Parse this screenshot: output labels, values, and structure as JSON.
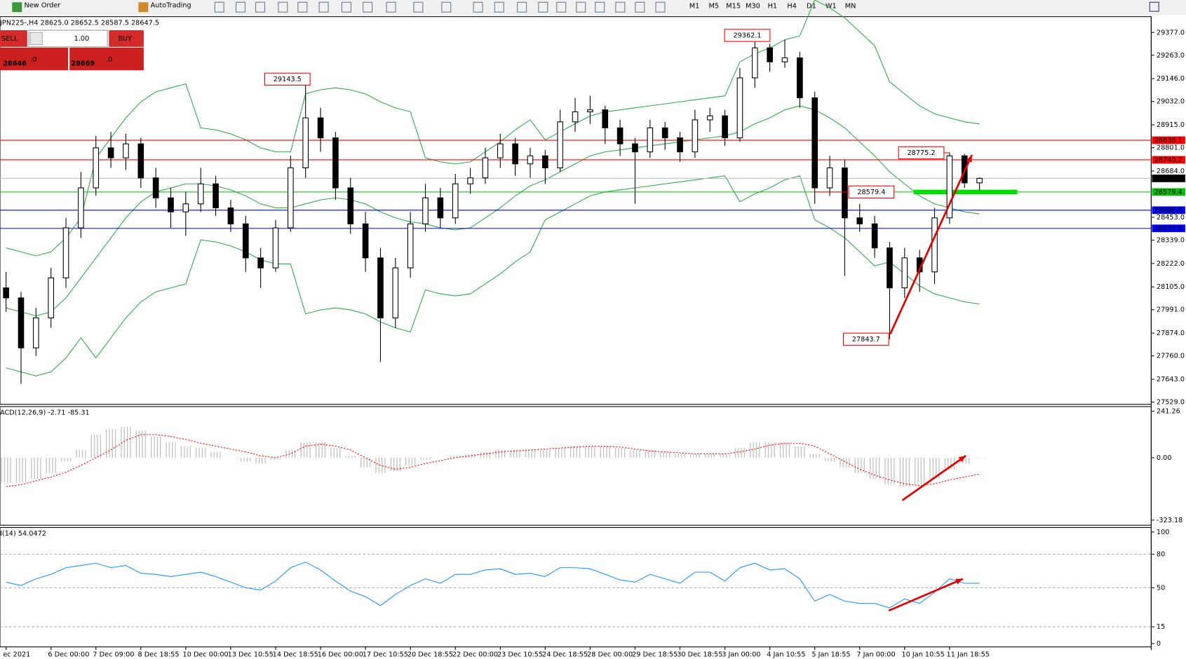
{
  "toolbar": {
    "buttons": [
      "New Order",
      "AutoTrading"
    ],
    "timeframes": [
      "M1",
      "M5",
      "M15",
      "M30",
      "H1",
      "H4",
      "D1",
      "W1",
      "MN"
    ]
  },
  "trade_panel": {
    "sell": "SELL",
    "buy": "BUY",
    "lots": "1.00",
    "sell_price": "28646",
    "sell_digits": ".0",
    "buy_price": "28669",
    "buy_digits": ".0"
  },
  "chart_data": [
    {
      "type": "candlestick",
      "title": "JPN225-,H4 28625.0 28652.5 28587.5 28647.5",
      "up_color": "#ffffff",
      "down_color": "#000000",
      "categories": [
        "ec 2021",
        null,
        null,
        "6 Dec 00:00",
        null,
        null,
        "7 Dec 09:00",
        null,
        null,
        "8 Dec 18:55",
        null,
        null,
        "10 Dec 00:00",
        null,
        null,
        "13 Dec 10:55",
        null,
        null,
        "14 Dec 18:55",
        null,
        null,
        "16 Dec 00:00",
        null,
        null,
        "17 Dec 10:55",
        null,
        null,
        "20 Dec 18:55",
        null,
        null,
        "22 Dec 00:00",
        null,
        null,
        "23 Dec 10:55",
        null,
        null,
        "24 Dec 18:55",
        null,
        null,
        "28 Dec 00:00",
        null,
        null,
        "29 Dec 18:55",
        null,
        null,
        "30 Dec 18:55",
        null,
        null,
        "3 Jan 00:00",
        null,
        null,
        "4 Jan 10:55",
        null,
        null,
        "5 Jan 18:55",
        null,
        null,
        "7 Jan 00:00",
        null,
        null,
        "10 Jan 10:55",
        null,
        null,
        "11 Jan 18:55",
        null,
        null
      ],
      "ohlc": [
        [
          28100,
          28180,
          27980,
          28050
        ],
        [
          28050,
          28080,
          27620,
          27800
        ],
        [
          27800,
          28000,
          27760,
          27950
        ],
        [
          27950,
          28200,
          27900,
          28150
        ],
        [
          28150,
          28450,
          28100,
          28400
        ],
        [
          28400,
          28680,
          28350,
          28600
        ],
        [
          28600,
          28860,
          28560,
          28800
        ],
        [
          28800,
          28880,
          28700,
          28750
        ],
        [
          28750,
          28870,
          28690,
          28820
        ],
        [
          28820,
          28850,
          28600,
          28650
        ],
        [
          28650,
          28700,
          28500,
          28550
        ],
        [
          28550,
          28600,
          28400,
          28480
        ],
        [
          28480,
          28580,
          28360,
          28520
        ],
        [
          28520,
          28700,
          28480,
          28620
        ],
        [
          28620,
          28660,
          28460,
          28500
        ],
        [
          28500,
          28540,
          28380,
          28420
        ],
        [
          28420,
          28460,
          28180,
          28250
        ],
        [
          28250,
          28300,
          28100,
          28200
        ],
        [
          28200,
          28440,
          28180,
          28400
        ],
        [
          28400,
          28760,
          28380,
          28700
        ],
        [
          28700,
          29143.5,
          28650,
          28950
        ],
        [
          28950,
          29000,
          28780,
          28850
        ],
        [
          28850,
          28880,
          28540,
          28600
        ],
        [
          28600,
          28650,
          28370,
          28420
        ],
        [
          28420,
          28480,
          28180,
          28250
        ],
        [
          28250,
          28300,
          27730,
          27950
        ],
        [
          27950,
          28250,
          27900,
          28200
        ],
        [
          28200,
          28480,
          28150,
          28420
        ],
        [
          28420,
          28620,
          28380,
          28550
        ],
        [
          28550,
          28600,
          28400,
          28450
        ],
        [
          28450,
          28670,
          28420,
          28620
        ],
        [
          28620,
          28700,
          28570,
          28650
        ],
        [
          28650,
          28800,
          28620,
          28750
        ],
        [
          28750,
          28870,
          28700,
          28820
        ],
        [
          28820,
          28850,
          28660,
          28720
        ],
        [
          28720,
          28800,
          28650,
          28760
        ],
        [
          28760,
          28790,
          28620,
          28700
        ],
        [
          28700,
          28990,
          28680,
          28930
        ],
        [
          28930,
          29050,
          28880,
          28980
        ],
        [
          28980,
          29060,
          28920,
          28990
        ],
        [
          28990,
          29010,
          28820,
          28900
        ],
        [
          28900,
          28940,
          28760,
          28820
        ],
        [
          28820,
          28850,
          28520,
          28780
        ],
        [
          28780,
          28940,
          28750,
          28900
        ],
        [
          28900,
          28930,
          28790,
          28850
        ],
        [
          28850,
          28880,
          28730,
          28780
        ],
        [
          28780,
          28990,
          28750,
          28940
        ],
        [
          28940,
          29000,
          28880,
          28960
        ],
        [
          28960,
          28990,
          28810,
          28850
        ],
        [
          28850,
          29200,
          28830,
          29150
        ],
        [
          29150,
          29362.1,
          29100,
          29300
        ],
        [
          29300,
          29320,
          29180,
          29230
        ],
        [
          29230,
          29340,
          29200,
          29250
        ],
        [
          29250,
          29280,
          29000,
          29050
        ],
        [
          29050,
          29080,
          28520,
          28600
        ],
        [
          28600,
          28760,
          28560,
          28700
        ],
        [
          28700,
          28740,
          28160,
          28450
        ],
        [
          28450,
          28520,
          28380,
          28420
        ],
        [
          28420,
          28460,
          28250,
          28300
        ],
        [
          28300,
          28330,
          27843.7,
          28100
        ],
        [
          28100,
          28300,
          28050,
          28250
        ],
        [
          28250,
          28290,
          28080,
          28180
        ],
        [
          28180,
          28500,
          28120,
          28450
        ],
        [
          28450,
          28775.2,
          28420,
          28760
        ],
        [
          28760,
          28770,
          28600,
          28625
        ],
        [
          28625,
          28652.5,
          28587.5,
          28647.5
        ]
      ],
      "bands": {
        "color": "#2eaa4a",
        "upper": [
          28300,
          28280,
          28260,
          28280,
          28350,
          28450,
          28750,
          28850,
          28950,
          29030,
          29080,
          29100,
          29120,
          28900,
          28890,
          28870,
          28840,
          28800,
          28780,
          28780,
          29070,
          29090,
          29100,
          29090,
          29070,
          29030,
          29000,
          28980,
          28750,
          28730,
          28720,
          28730,
          28780,
          28830,
          28890,
          28940,
          28840,
          28880,
          28920,
          28960,
          28980,
          28990,
          29000,
          29010,
          29020,
          29030,
          29040,
          29050,
          29060,
          29230,
          29270,
          29300,
          29340,
          29360,
          29540,
          29500,
          29450,
          29380,
          29310,
          29130,
          29070,
          29010,
          28970,
          28950,
          28930,
          28920
        ],
        "middle": [
          28000,
          27980,
          27960,
          27980,
          28050,
          28150,
          28250,
          28350,
          28450,
          28530,
          28580,
          28600,
          28620,
          28620,
          28610,
          28590,
          28560,
          28520,
          28500,
          28500,
          28520,
          28540,
          28550,
          28540,
          28520,
          28480,
          28450,
          28430,
          28420,
          28400,
          28390,
          28400,
          28450,
          28500,
          28560,
          28610,
          28640,
          28680,
          28720,
          28760,
          28780,
          28790,
          28800,
          28810,
          28820,
          28830,
          28840,
          28850,
          28860,
          28880,
          28920,
          28950,
          28990,
          29010,
          28990,
          28950,
          28900,
          28830,
          28760,
          28680,
          28620,
          28560,
          28520,
          28500,
          28480,
          28470
        ],
        "lower": [
          27700,
          27680,
          27660,
          27680,
          27750,
          27850,
          27750,
          27850,
          27950,
          28030,
          28080,
          28100,
          28120,
          28340,
          28330,
          28310,
          28280,
          28240,
          28220,
          28220,
          27970,
          27990,
          28000,
          27990,
          27970,
          27930,
          27900,
          27880,
          28090,
          28070,
          28060,
          28070,
          28120,
          28170,
          28230,
          28280,
          28440,
          28480,
          28520,
          28560,
          28580,
          28590,
          28600,
          28610,
          28620,
          28630,
          28640,
          28650,
          28660,
          28530,
          28570,
          28600,
          28640,
          28660,
          28440,
          28400,
          28350,
          28280,
          28210,
          28230,
          28170,
          28110,
          28070,
          28050,
          28030,
          28020
        ]
      },
      "levels": [
        {
          "value": 28838.1,
          "color": "#ff0000"
        },
        {
          "value": 28740.2,
          "color": "#ff0000"
        },
        {
          "value": 28647.5,
          "color": "#c0c0c0"
        },
        {
          "value": 28579.4,
          "color": "#00c000"
        },
        {
          "value": 28488.5,
          "color": "#0000ff"
        },
        {
          "value": 28397.6,
          "color": "#0000ff"
        }
      ],
      "price_labels": [
        29362.1,
        29143.5,
        28775.2,
        28579.4,
        27843.7
      ],
      "ylim": [
        27518,
        29456
      ],
      "yticks": [
        {
          "value": 29377,
          "label": "29377.0"
        },
        {
          "value": 29263,
          "label": "29263.0"
        },
        {
          "value": 29146,
          "label": "29146.0"
        },
        {
          "value": 29032,
          "label": "29032.0"
        },
        {
          "value": 28915,
          "label": "28915.0"
        },
        {
          "value": 28801,
          "label": "28801.0"
        },
        {
          "value": 28684,
          "label": "28684.0"
        },
        {
          "value": 28453,
          "label": "28453.0"
        },
        {
          "value": 28339,
          "label": "28339.0"
        },
        {
          "value": 28222,
          "label": "28222.0"
        },
        {
          "value": 28105,
          "label": "28105.0"
        },
        {
          "value": 27991,
          "label": "27991.0"
        },
        {
          "value": 27874,
          "label": "27874.0"
        },
        {
          "value": 27760,
          "label": "27760.0"
        },
        {
          "value": 27643,
          "label": "27643.0"
        },
        {
          "value": 27529,
          "label": "27529.0"
        }
      ]
    },
    {
      "type": "macd",
      "title": "ACD(12,26,9) -2.71 -85.31",
      "color": "#c0c0c0",
      "signal_color": "#ff0000",
      "histogram": [
        -130,
        -130,
        -110,
        -80,
        -20,
        40,
        120,
        150,
        160,
        140,
        110,
        80,
        60,
        50,
        30,
        0,
        -20,
        -30,
        -10,
        40,
        80,
        80,
        50,
        10,
        -50,
        -80,
        -70,
        -40,
        -10,
        0,
        10,
        20,
        30,
        40,
        40,
        40,
        40,
        50,
        60,
        60,
        60,
        50,
        40,
        40,
        30,
        20,
        20,
        20,
        20,
        50,
        80,
        80,
        80,
        60,
        20,
        -20,
        -50,
        -80,
        -110,
        -140,
        -150,
        -140,
        -110,
        -60,
        -30,
        -3
      ],
      "signal": [
        -150,
        -140,
        -120,
        -100,
        -75,
        -40,
        0,
        40,
        90,
        120,
        120,
        110,
        95,
        75,
        60,
        45,
        30,
        10,
        0,
        20,
        60,
        70,
        60,
        40,
        0,
        -40,
        -60,
        -50,
        -30,
        -15,
        0,
        10,
        20,
        30,
        35,
        40,
        45,
        50,
        55,
        60,
        60,
        55,
        45,
        35,
        30,
        25,
        20,
        20,
        20,
        30,
        45,
        65,
        75,
        75,
        60,
        20,
        -20,
        -60,
        -90,
        -115,
        -135,
        -145,
        -135,
        -115,
        -100,
        -85.31
      ],
      "ylim": [
        -350,
        265
      ],
      "yticks": [
        241.26,
        {
          "value": 0,
          "label": "0.00"
        },
        -323.18
      ]
    },
    {
      "type": "line",
      "title": "I(14) 54.0472",
      "color": "#1e90ff",
      "values": [
        55,
        52,
        58,
        62,
        68,
        70,
        72,
        68,
        70,
        63,
        62,
        60,
        62,
        64,
        60,
        55,
        50,
        48,
        56,
        68,
        73,
        66,
        56,
        47,
        42,
        34,
        44,
        52,
        58,
        54,
        62,
        62,
        66,
        67,
        62,
        63,
        60,
        68,
        68,
        67,
        62,
        57,
        55,
        62,
        58,
        54,
        64,
        64,
        56,
        68,
        72,
        66,
        67,
        58,
        38,
        44,
        38,
        36,
        36,
        32,
        40,
        36,
        46,
        58,
        54,
        54.0472
      ],
      "levels": [
        80,
        50,
        15
      ],
      "ylim": [
        -3,
        104
      ],
      "yticks": [
        100,
        80,
        50,
        15,
        0
      ]
    }
  ]
}
